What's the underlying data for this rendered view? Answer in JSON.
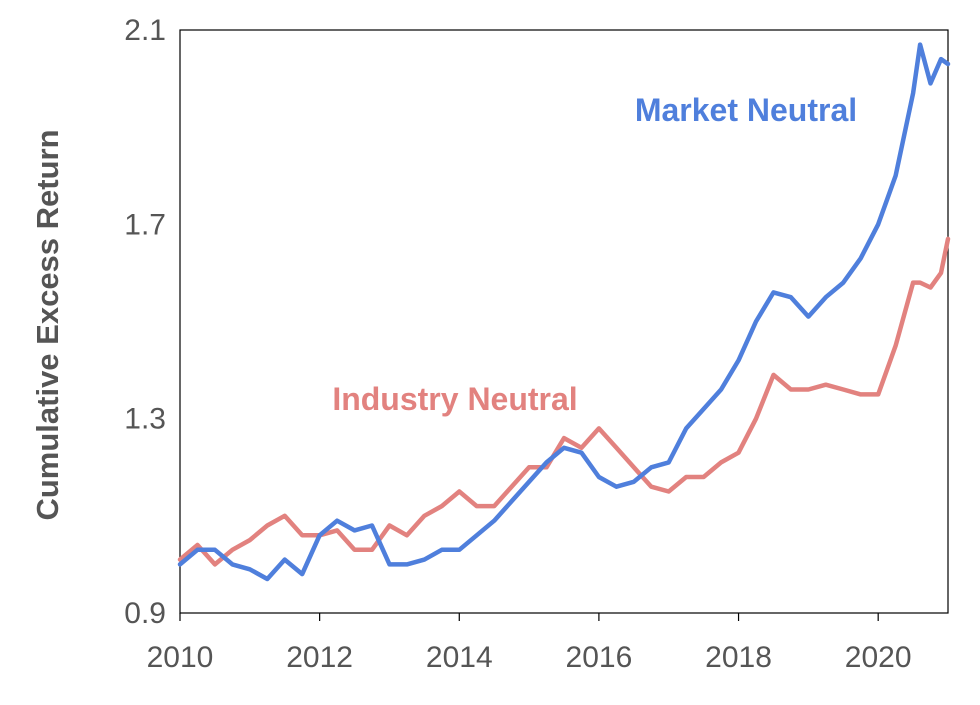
{
  "chart_data": {
    "type": "line",
    "title": "",
    "xlabel": "",
    "ylabel": "Cumulative Excess Return",
    "xlim": [
      2010,
      2021
    ],
    "ylim": [
      0.9,
      2.1
    ],
    "xticks": [
      "2010",
      "2012",
      "2014",
      "2016",
      "2018",
      "2020"
    ],
    "yticks": [
      "0.9",
      "1.3",
      "1.7",
      "2.1"
    ],
    "grid": false,
    "legend": "inline labels",
    "series": [
      {
        "name": "Market Neutral",
        "color": "#4f7fdc",
        "x": [
          2010.0,
          2010.25,
          2010.5,
          2010.75,
          2011.0,
          2011.25,
          2011.5,
          2011.75,
          2012.0,
          2012.25,
          2012.5,
          2012.75,
          2013.0,
          2013.25,
          2013.5,
          2013.75,
          2014.0,
          2014.25,
          2014.5,
          2014.75,
          2015.0,
          2015.25,
          2015.5,
          2015.75,
          2016.0,
          2016.25,
          2016.5,
          2016.75,
          2017.0,
          2017.25,
          2017.5,
          2017.75,
          2018.0,
          2018.25,
          2018.5,
          2018.75,
          2019.0,
          2019.25,
          2019.5,
          2019.75,
          2020.0,
          2020.25,
          2020.5,
          2020.6,
          2020.75,
          2020.9,
          2021.0
        ],
        "values": [
          1.0,
          1.03,
          1.03,
          1.0,
          0.99,
          0.97,
          1.01,
          0.98,
          1.06,
          1.09,
          1.07,
          1.08,
          1.0,
          1.0,
          1.01,
          1.03,
          1.03,
          1.06,
          1.09,
          1.13,
          1.17,
          1.21,
          1.24,
          1.23,
          1.18,
          1.16,
          1.17,
          1.2,
          1.21,
          1.28,
          1.32,
          1.36,
          1.42,
          1.5,
          1.56,
          1.55,
          1.51,
          1.55,
          1.58,
          1.63,
          1.7,
          1.8,
          1.97,
          2.07,
          1.99,
          2.04,
          2.03
        ]
      },
      {
        "name": "Industry Neutral",
        "color": "#e2827f",
        "x": [
          2010.0,
          2010.25,
          2010.5,
          2010.75,
          2011.0,
          2011.25,
          2011.5,
          2011.75,
          2012.0,
          2012.25,
          2012.5,
          2012.75,
          2013.0,
          2013.25,
          2013.5,
          2013.75,
          2014.0,
          2014.25,
          2014.5,
          2014.75,
          2015.0,
          2015.25,
          2015.5,
          2015.75,
          2016.0,
          2016.25,
          2016.5,
          2016.75,
          2017.0,
          2017.25,
          2017.5,
          2017.75,
          2018.0,
          2018.25,
          2018.5,
          2018.75,
          2019.0,
          2019.25,
          2019.5,
          2019.75,
          2020.0,
          2020.25,
          2020.5,
          2020.6,
          2020.75,
          2020.9,
          2021.0
        ],
        "values": [
          1.01,
          1.04,
          1.0,
          1.03,
          1.05,
          1.08,
          1.1,
          1.06,
          1.06,
          1.07,
          1.03,
          1.03,
          1.08,
          1.06,
          1.1,
          1.12,
          1.15,
          1.12,
          1.12,
          1.16,
          1.2,
          1.2,
          1.26,
          1.24,
          1.28,
          1.24,
          1.2,
          1.16,
          1.15,
          1.18,
          1.18,
          1.21,
          1.23,
          1.3,
          1.39,
          1.36,
          1.36,
          1.37,
          1.36,
          1.35,
          1.35,
          1.45,
          1.58,
          1.58,
          1.57,
          1.6,
          1.67
        ]
      }
    ],
    "annotations": [
      {
        "text": "Market Neutral",
        "color": "#4f7fdc"
      },
      {
        "text": "Industry Neutral",
        "color": "#e2827f"
      }
    ]
  }
}
